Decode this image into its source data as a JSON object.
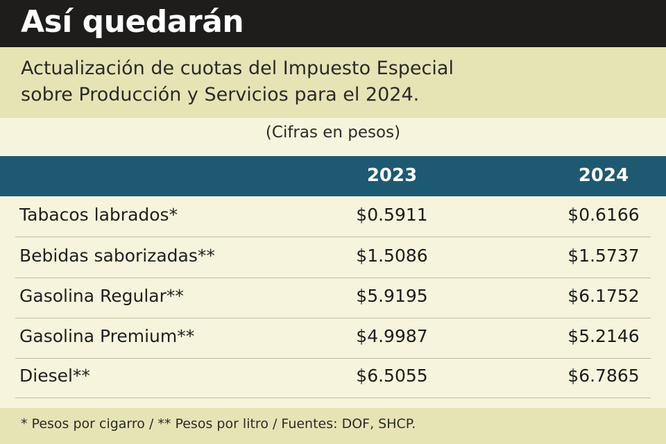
{
  "title": "Así quedarán",
  "subtitle_line1": "Actualización de cuotas del Impuesto Especial",
  "subtitle_line2": "sobre Producción y Servicios para el 2024.",
  "units_note": "(Cifras en pesos)",
  "columns": [
    "2023",
    "2024"
  ],
  "rows": [
    {
      "label": "Tabacos labrados*",
      "v2023": "$0.5911",
      "v2024": "$0.6166"
    },
    {
      "label": "Bebidas saborizadas**",
      "v2023": "$1.5086",
      "v2024": "$1.5737"
    },
    {
      "label": "Gasolina Regular**",
      "v2023": "$5.9195",
      "v2024": "$6.1752"
    },
    {
      "label": "Gasolina Premium**",
      "v2023": "$4.9987",
      "v2024": "$5.2146"
    },
    {
      "label": "Diesel**",
      "v2023": "$6.5055",
      "v2024": "$6.7865"
    }
  ],
  "footer": "* Pesos por cigarro / ** Pesos por litro / Fuentes: DOF, SHCP.",
  "colors": {
    "title_bg": "#1e1d1b",
    "band_bg": "#e6e4b4",
    "page_bg": "#f6f4dc",
    "header_bg": "#1e5972"
  }
}
